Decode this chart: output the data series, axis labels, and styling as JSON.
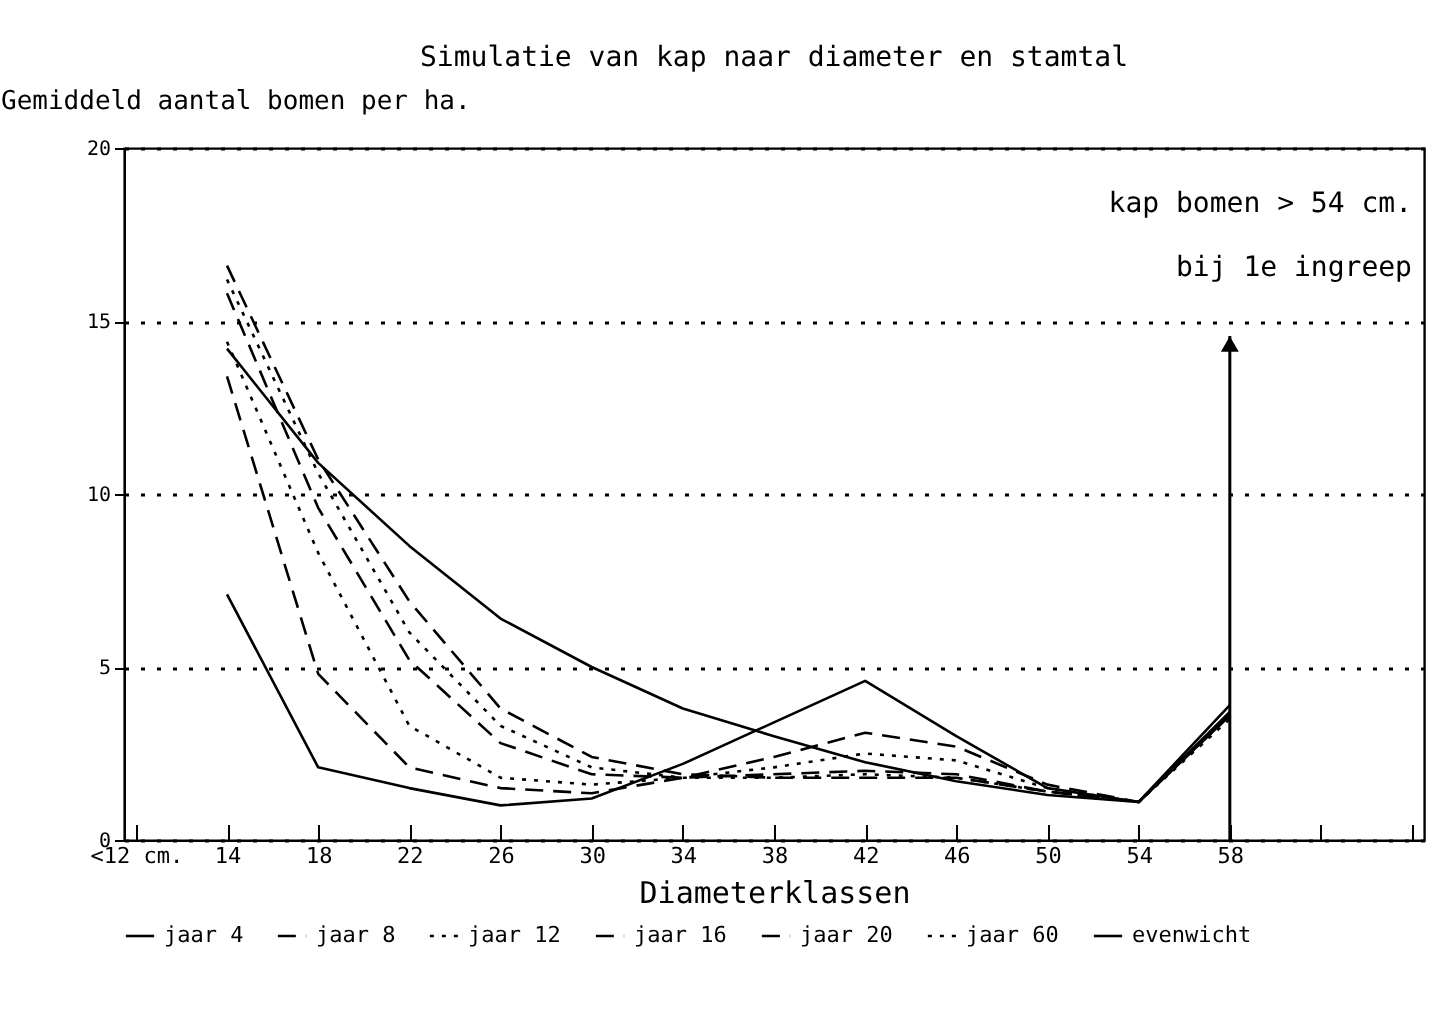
{
  "chart_data": {
    "type": "line",
    "title": "Simulatie van kap naar diameter en stamtal",
    "ylabel": "Gemiddeld aantal bomen per ha.",
    "xlabel": "Diameterklassen",
    "categories": [
      "<12 cm.",
      "14",
      "18",
      "22",
      "26",
      "30",
      "34",
      "38",
      "42",
      "46",
      "50",
      "54",
      "58",
      null,
      null
    ],
    "series": [
      {
        "name": "jaar 4",
        "color": "#000000",
        "line_style": "solid",
        "values": [
          null,
          7.1,
          2.1,
          1.5,
          1.0,
          1.2,
          2.2,
          3.4,
          4.6,
          3.0,
          1.5,
          1.1,
          3.7,
          null,
          null
        ]
      },
      {
        "name": "jaar 8",
        "color": "#000000",
        "line_style": "dashed",
        "values": [
          null,
          13.4,
          4.8,
          2.1,
          1.5,
          1.35,
          1.8,
          2.4,
          3.1,
          2.7,
          1.6,
          1.1,
          3.6,
          null,
          null
        ]
      },
      {
        "name": "jaar 12",
        "color": "#000000",
        "line_style": "dotted",
        "values": [
          null,
          14.4,
          8.3,
          3.3,
          1.8,
          1.6,
          1.8,
          2.1,
          2.5,
          2.3,
          1.5,
          1.1,
          3.6,
          null,
          null
        ]
      },
      {
        "name": "jaar 16",
        "color": "#000000",
        "line_style": "dashed",
        "values": [
          null,
          15.8,
          9.6,
          5.2,
          2.8,
          1.9,
          1.8,
          1.9,
          2.0,
          1.9,
          1.4,
          1.1,
          3.6,
          null,
          null
        ]
      },
      {
        "name": "jaar 20",
        "color": "#000000",
        "line_style": "dashed",
        "values": [
          null,
          16.6,
          11.0,
          6.9,
          3.8,
          2.4,
          1.9,
          1.8,
          1.8,
          1.8,
          1.4,
          1.1,
          3.6,
          null,
          null
        ]
      },
      {
        "name": "jaar 60",
        "color": "#000000",
        "line_style": "dotted",
        "values": [
          null,
          16.2,
          10.6,
          6.0,
          3.3,
          2.1,
          1.8,
          1.8,
          1.9,
          1.8,
          1.4,
          1.1,
          3.5,
          null,
          null
        ]
      },
      {
        "name": "evenwicht",
        "color": "#000000",
        "line_style": "solid",
        "values": [
          null,
          14.2,
          10.9,
          8.5,
          6.4,
          5.0,
          3.8,
          3.0,
          2.25,
          1.7,
          1.3,
          1.1,
          3.9,
          null,
          null
        ]
      }
    ],
    "ylim": [
      0,
      20
    ],
    "yticks": [
      0,
      5,
      10,
      15,
      20
    ],
    "grid": "y",
    "legend": "bottom",
    "annotations": [
      "kap bomen > 54 cm.",
      "bij 1e ingreep"
    ]
  }
}
